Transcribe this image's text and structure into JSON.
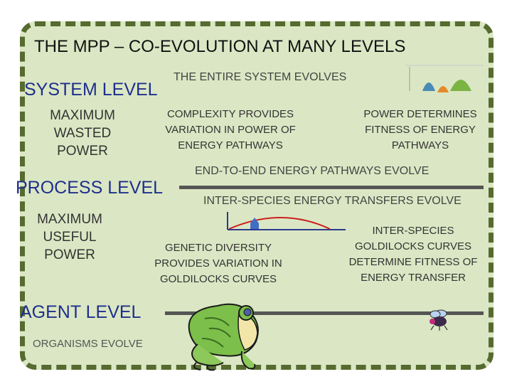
{
  "title": "THE MPP – CO-EVOLUTION AT MANY LEVELS",
  "system": {
    "label": "SYSTEM LEVEL",
    "evolves": "THE ENTIRE SYSTEM EVOLVES",
    "metric": [
      "MAXIMUM",
      "WASTED",
      "POWER"
    ],
    "variation": [
      "COMPLEXITY PROVIDES",
      "VARIATION IN POWER OF",
      "ENERGY PATHWAYS"
    ],
    "fitness": [
      "POWER DETERMINES",
      "FITNESS OF ENERGY",
      "PATHWAYS"
    ]
  },
  "process": {
    "label": "PROCESS LEVEL",
    "pathways": "END-TO-END ENERGY PATHWAYS EVOLVE",
    "transfers": "INTER-SPECIES ENERGY TRANSFERS EVOLVE",
    "metric": [
      "MAXIMUM",
      "USEFUL",
      "POWER"
    ],
    "variation": [
      "GENETIC DIVERSITY",
      "PROVIDES VARIATION IN",
      "GOLDILOCKS CURVES"
    ],
    "fitness": [
      "INTER-SPECIES",
      "GOLDILOCKS CURVES",
      "DETERMINE FITNESS OF",
      "ENERGY TRANSFER"
    ]
  },
  "agent": {
    "label": "AGENT LEVEL",
    "evolves": "ORGANISMS EVOLVE"
  },
  "colors": {
    "level_label": "#1f2f8c",
    "border": "#556b2f",
    "background": "#dbe7c4",
    "curve": "#cc1f1f"
  }
}
